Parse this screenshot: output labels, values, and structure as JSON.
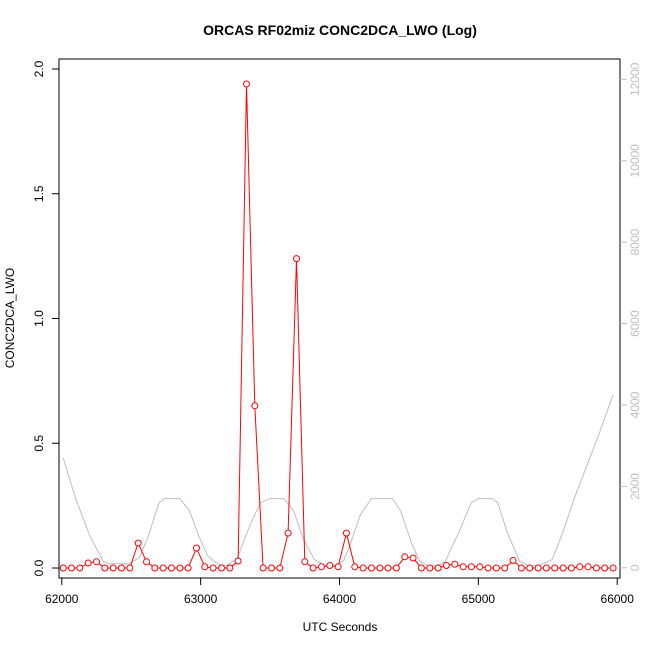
{
  "chart_data": {
    "type": "line",
    "title": "ORCAS RF02miz CONC2DCA_LWO (Log)",
    "xlabel": "UTC Seconds",
    "ylabel": "CONC2DCA_LWO",
    "xlim": [
      61980,
      66020
    ],
    "ylim": [
      -0.04,
      2.04
    ],
    "y2lim": [
      -250,
      12500
    ],
    "x_ticks": [
      62000,
      63000,
      64000,
      65000,
      66000
    ],
    "y_ticks": [
      0.0,
      0.5,
      1.0,
      1.5,
      2.0
    ],
    "y_tick_labels": [
      "0.0",
      "0.5",
      "1.0",
      "1.5",
      "2.0"
    ],
    "y2_ticks": [
      0,
      2000,
      4000,
      6000,
      8000,
      10000,
      12000
    ],
    "colors": {
      "primary": "#ff0000",
      "secondary": "#bebebe"
    },
    "series": [
      {
        "axis": "left",
        "style": "line+open-circle",
        "x": [
          62010,
          62070,
          62130,
          62190,
          62250,
          62310,
          62370,
          62430,
          62490,
          62550,
          62610,
          62670,
          62730,
          62790,
          62850,
          62910,
          62970,
          63030,
          63090,
          63150,
          63210,
          63270,
          63330,
          63390,
          63450,
          63510,
          63570,
          63630,
          63690,
          63750,
          63810,
          63870,
          63930,
          63990,
          64050,
          64110,
          64170,
          64230,
          64290,
          64350,
          64410,
          64470,
          64530,
          64590,
          64650,
          64710,
          64770,
          64830,
          64890,
          64950,
          65010,
          65070,
          65130,
          65190,
          65250,
          65310,
          65370,
          65430,
          65490,
          65550,
          65610,
          65670,
          65730,
          65790,
          65850,
          65910,
          65970
        ],
        "y": [
          0.0,
          0.0,
          0.0,
          0.02,
          0.025,
          0.0,
          0.0,
          0.0,
          0.0,
          0.1,
          0.025,
          0.0,
          0.0,
          0.0,
          0.0,
          0.0,
          0.08,
          0.005,
          0.0,
          0.0,
          0.0,
          0.028,
          1.94,
          0.65,
          0.0,
          0.0,
          0.0,
          0.14,
          1.24,
          0.025,
          0.0,
          0.005,
          0.01,
          0.005,
          0.14,
          0.005,
          0.0,
          0.0,
          0.0,
          0.0,
          0.0,
          0.045,
          0.04,
          0.0,
          0.0,
          0.0,
          0.01,
          0.015,
          0.005,
          0.005,
          0.005,
          0.0,
          0.0,
          0.0,
          0.03,
          0.0,
          0.0,
          0.0,
          0.0,
          0.0,
          0.0,
          0.0,
          0.005,
          0.005,
          0.0,
          0.0,
          0.0
        ]
      },
      {
        "axis": "right",
        "style": "line",
        "x": [
          62010,
          62100,
          62200,
          62300,
          62350,
          62480,
          62560,
          62620,
          62700,
          62740,
          62850,
          62920,
          62990,
          63050,
          63120,
          63180,
          63260,
          63350,
          63430,
          63500,
          63600,
          63670,
          63740,
          63820,
          63900,
          63960,
          64030,
          64080,
          64150,
          64230,
          64300,
          64380,
          64440,
          64520,
          64580,
          64640,
          64700,
          64760,
          64850,
          64950,
          65000,
          65100,
          65140,
          65210,
          65300,
          65370,
          65430,
          65530,
          65600,
          65690,
          65780,
          65870,
          65970
        ],
        "y": [
          2700,
          1700,
          800,
          150,
          100,
          100,
          250,
          750,
          1600,
          1700,
          1700,
          1400,
          750,
          300,
          100,
          50,
          200,
          1000,
          1600,
          1700,
          1700,
          1400,
          700,
          200,
          50,
          40,
          180,
          600,
          1300,
          1700,
          1700,
          1700,
          1400,
          600,
          150,
          50,
          50,
          150,
          800,
          1600,
          1700,
          1700,
          1600,
          850,
          150,
          50,
          50,
          200,
          800,
          1700,
          2500,
          3300,
          4250
        ]
      }
    ]
  }
}
